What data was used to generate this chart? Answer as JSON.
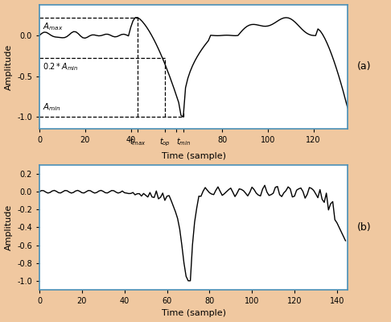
{
  "fig_bg": "#ffffff",
  "plot_bg": "#ffffff",
  "outer_bg": "#f0c8a0",
  "line_color": "black",
  "line_width": 1.0,
  "subplot_a": {
    "xlim": [
      0,
      135
    ],
    "ylim": [
      -1.15,
      0.38
    ],
    "xticks": [
      0,
      20,
      40,
      60,
      80,
      100,
      120
    ],
    "yticks": [
      -1.0,
      -0.5,
      0.0
    ],
    "xlabel": "Time (sample)",
    "ylabel": "Amplitude",
    "label": "(a)",
    "t_max": 43,
    "t_op": 55,
    "t_min": 63,
    "A_max": 0.22,
    "A_min": -1.0,
    "A_02min": -0.28
  },
  "subplot_b": {
    "xlim": [
      0,
      145
    ],
    "ylim": [
      -1.1,
      0.3
    ],
    "xticks": [
      0,
      20,
      40,
      60,
      80,
      100,
      120,
      140
    ],
    "yticks": [
      -1.0,
      -0.8,
      -0.6,
      -0.4,
      -0.2,
      0.0,
      0.2
    ],
    "xlabel": "Time (sample)",
    "ylabel": "Amplitude",
    "label": "(b)"
  }
}
